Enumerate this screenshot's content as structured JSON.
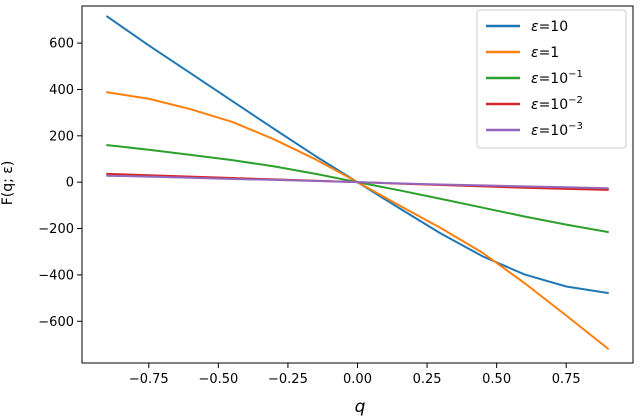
{
  "chart_data": {
    "type": "line",
    "title": "",
    "xlabel": "q",
    "ylabel": "F(q; ε)",
    "xlim": [
      -0.99,
      0.99
    ],
    "ylim": [
      -780,
      760
    ],
    "xticks": [
      -0.75,
      -0.5,
      -0.25,
      0.0,
      0.25,
      0.5,
      0.75
    ],
    "xtick_labels": [
      "−0.75",
      "−0.50",
      "−0.25",
      "0.00",
      "0.25",
      "0.50",
      "0.75"
    ],
    "yticks": [
      -600,
      -400,
      -200,
      0,
      200,
      400,
      600
    ],
    "ytick_labels": [
      "−600",
      "−400",
      "−200",
      "0",
      "200",
      "400",
      "600"
    ],
    "grid": false,
    "legend_position": "top-right",
    "x": [
      -0.9,
      -0.75,
      -0.6,
      -0.45,
      -0.3,
      -0.15,
      0.0,
      0.15,
      0.3,
      0.45,
      0.6,
      0.75,
      0.9
    ],
    "series": [
      {
        "name_prefix": "ε=",
        "name_base": "10",
        "name_exp": "",
        "color": "#1f77b4",
        "values": [
          715,
          590,
          470,
          350,
          230,
          112,
          0,
          -112,
          -222,
          -320,
          -398,
          -450,
          -478
        ]
      },
      {
        "name_prefix": "ε=",
        "name_base": "1",
        "name_exp": "",
        "color": "#ff7f0e",
        "values": [
          388,
          360,
          315,
          260,
          185,
          98,
          0,
          -100,
          -198,
          -305,
          -435,
          -575,
          -718
        ]
      },
      {
        "name_prefix": "ε=",
        "name_base": "10",
        "name_exp": "−1",
        "color": "#2ca02c",
        "values": [
          160,
          140,
          118,
          95,
          68,
          36,
          0,
          -35,
          -72,
          -110,
          -148,
          -183,
          -215
        ]
      },
      {
        "name_prefix": "ε=",
        "name_base": "10",
        "name_exp": "−2",
        "color": "#d62728",
        "values": [
          36,
          30,
          24,
          18,
          12,
          6,
          0,
          -6,
          -12,
          -18,
          -24,
          -29,
          -33
        ]
      },
      {
        "name_prefix": "ε=",
        "name_base": "10",
        "name_exp": "−3",
        "color": "#9467bd",
        "values": [
          28,
          24,
          19,
          14,
          10,
          5,
          0,
          -5,
          -10,
          -14,
          -18,
          -22,
          -26
        ]
      }
    ]
  }
}
